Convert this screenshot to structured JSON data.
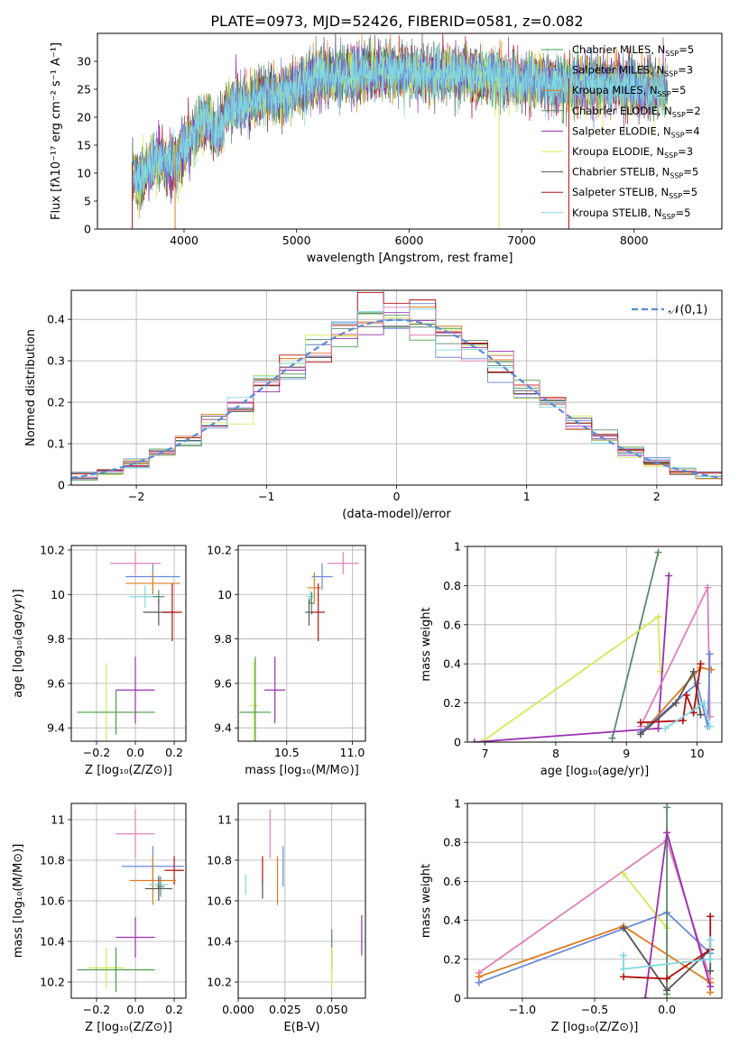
{
  "figure_title": "PLATE=0973, MJD=52426, FIBERID=0581, z=0.082",
  "colors": {
    "chabrier_miles": "#4a9a4a",
    "salpeter_miles": "#6a8ad8",
    "kroupa_miles": "#e07b20",
    "chabrier_elodie": "#5a8a6a",
    "salpeter_elodie": "#9a30b0",
    "kroupa_elodie": "#d6e85a",
    "chabrier_stelib": "#555555",
    "salpeter_stelib": "#b01010",
    "kroupa_stelib": "#80d8e0",
    "pink": "#e080b8",
    "normal_curve": "#5a8ad8"
  },
  "chart_data": [
    {
      "id": "spectrum",
      "type": "line",
      "xlabel": "wavelength [Angstrom, rest frame]",
      "ylabel": "Flux [fλ10⁻¹⁷ erg cm⁻² s⁻¹ A⁻¹]",
      "xlim": [
        3230,
        8780
      ],
      "ylim": [
        0,
        35
      ],
      "xticks": [
        4000,
        5000,
        6000,
        7000,
        8000
      ],
      "yticks": [
        0,
        5,
        10,
        15,
        20,
        25,
        30
      ],
      "grid": false,
      "legend_position": "top-right",
      "series": [
        {
          "name": "Chabrier MILES, N_SSP=5",
          "color_key": "chabrier_miles"
        },
        {
          "name": "Salpeter MILES, N_SSP=3",
          "color_key": "salpeter_miles"
        },
        {
          "name": "Kroupa MILES, N_SSP=5",
          "color_key": "kroupa_miles"
        },
        {
          "name": "Chabrier ELODIE, N_SSP=2",
          "color_key": "chabrier_elodie"
        },
        {
          "name": "Salpeter ELODIE, N_SSP=4",
          "color_key": "salpeter_elodie"
        },
        {
          "name": "Kroupa ELODIE, N_SSP=3",
          "color_key": "kroupa_elodie"
        },
        {
          "name": "Chabrier STELIB, N_SSP=5",
          "color_key": "chabrier_stelib"
        },
        {
          "name": "Salpeter STELIB, N_SSP=5",
          "color_key": "salpeter_stelib"
        },
        {
          "name": "Kroupa STELIB, N_SSP=5",
          "color_key": "kroupa_stelib"
        }
      ],
      "continuum": {
        "wavelength": [
          3540,
          3600,
          3700,
          3800,
          3900,
          4000,
          4100,
          4200,
          4300,
          4400,
          4600,
          4800,
          5000,
          5200,
          5400,
          5600,
          5800,
          6000,
          6200,
          6400,
          6600,
          6800,
          7000,
          7200,
          7400,
          7600,
          7800,
          8000,
          8200,
          8300
        ],
        "flux": [
          11,
          10,
          12,
          13,
          12,
          15,
          19,
          21,
          18,
          23,
          24,
          25,
          26,
          28,
          28.5,
          29,
          29.5,
          29,
          28.5,
          29,
          28.5,
          28,
          27.5,
          27.5,
          27,
          27,
          26.5,
          26.5,
          26,
          25.5
        ]
      }
    },
    {
      "id": "residuals",
      "type": "histogram",
      "xlabel": "(data-model)/error",
      "ylabel": "Normed distribution",
      "xlim": [
        -2.5,
        2.5
      ],
      "ylim": [
        0,
        0.47
      ],
      "xticks": [
        -2,
        -1,
        0,
        1,
        2
      ],
      "xtick_labels": [
        "−2",
        "−1",
        "0",
        "1",
        "2"
      ],
      "yticks": [
        0.0,
        0.1,
        0.2,
        0.3,
        0.4
      ],
      "grid": true,
      "legend_position": "top-right",
      "legend_label": "𝒩(0,1)",
      "bin_edges": [
        -2.5,
        -2.3,
        -2.1,
        -1.9,
        -1.7,
        -1.5,
        -1.3,
        -1.1,
        -0.9,
        -0.7,
        -0.5,
        -0.3,
        -0.1,
        0.1,
        0.3,
        0.5,
        0.7,
        0.9,
        1.1,
        1.3,
        1.5,
        1.7,
        1.9,
        2.1,
        2.3,
        2.5
      ]
    },
    {
      "id": "age_vs_Z",
      "type": "errorbar",
      "xlabel": "Z [log₁₀(Z/Z⊙)]",
      "ylabel": "age  [log₁₀(age/yr)]",
      "xlim": [
        -0.33,
        0.26
      ],
      "ylim": [
        9.34,
        10.22
      ],
      "xticks": [
        -0.2,
        0.0,
        0.2
      ],
      "xtick_labels": [
        "−0.2",
        "0.0",
        "0.2"
      ],
      "yticks": [
        9.4,
        9.6,
        9.8,
        10.0,
        10.2
      ],
      "grid": true,
      "points": [
        {
          "color_key": "pink",
          "x": 0.0,
          "xerr": 0.13,
          "y": 10.14,
          "yerr": 0.05
        },
        {
          "color_key": "salpeter_miles",
          "x": 0.09,
          "xerr": 0.14,
          "y": 10.08,
          "yerr": 0.06
        },
        {
          "color_key": "kroupa_miles",
          "x": 0.09,
          "xerr": 0.14,
          "y": 10.05,
          "yerr": 0.05
        },
        {
          "color_key": "kroupa_stelib",
          "x": 0.05,
          "xerr": 0.08,
          "y": 9.99,
          "yerr": 0.05
        },
        {
          "color_key": "chabrier_elodie",
          "x": 0.12,
          "xerr": 0.03,
          "y": 9.99,
          "yerr": 0.03
        },
        {
          "color_key": "chabrier_stelib",
          "x": 0.12,
          "xerr": 0.08,
          "y": 9.92,
          "yerr": 0.06
        },
        {
          "color_key": "salpeter_stelib",
          "x": 0.19,
          "xerr": 0.05,
          "y": 9.92,
          "yerr": 0.13
        },
        {
          "color_key": "salpeter_elodie",
          "x": 0.0,
          "xerr": 0.1,
          "y": 9.57,
          "yerr": 0.15
        },
        {
          "color_key": "kroupa_elodie",
          "x": -0.15,
          "xerr": 0.09,
          "y": 9.47,
          "yerr": 0.22
        },
        {
          "color_key": "chabrier_miles",
          "x": -0.1,
          "xerr": 0.2,
          "y": 9.47,
          "yerr": 0.1
        }
      ]
    },
    {
      "id": "age_vs_mass",
      "type": "errorbar",
      "xlabel": "mass [log₁₀(M/M⊙)]",
      "ylabel": "",
      "xlim": [
        10.13,
        11.1
      ],
      "ylim": [
        9.34,
        10.22
      ],
      "xticks": [
        10.5,
        11.0
      ],
      "xtick_labels": [
        "10.5",
        "11.0"
      ],
      "yticks": [
        9.4,
        9.6,
        9.8,
        10.0,
        10.2
      ],
      "grid": true,
      "points": [
        {
          "color_key": "pink",
          "x": 10.93,
          "xerr": 0.12,
          "y": 10.14,
          "yerr": 0.05
        },
        {
          "color_key": "salpeter_miles",
          "x": 10.77,
          "xerr": 0.08,
          "y": 10.08,
          "yerr": 0.06
        },
        {
          "color_key": "kroupa_miles",
          "x": 10.71,
          "xerr": 0.05,
          "y": 10.03,
          "yerr": 0.07
        },
        {
          "color_key": "kroupa_stelib",
          "x": 10.68,
          "xerr": 0.03,
          "y": 9.99,
          "yerr": 0.03
        },
        {
          "color_key": "chabrier_elodie",
          "x": 10.69,
          "xerr": 0.02,
          "y": 9.96,
          "yerr": 0.05
        },
        {
          "color_key": "chabrier_stelib",
          "x": 10.67,
          "xerr": 0.03,
          "y": 9.92,
          "yerr": 0.06
        },
        {
          "color_key": "salpeter_stelib",
          "x": 10.74,
          "xerr": 0.05,
          "y": 9.92,
          "yerr": 0.13
        },
        {
          "color_key": "salpeter_elodie",
          "x": 10.41,
          "xerr": 0.08,
          "y": 9.57,
          "yerr": 0.15
        },
        {
          "color_key": "kroupa_elodie",
          "x": 10.25,
          "xerr": 0.03,
          "y": 9.5,
          "yerr": 0.2
        },
        {
          "color_key": "chabrier_miles",
          "x": 10.26,
          "xerr": 0.12,
          "y": 9.47,
          "yerr": 0.25
        }
      ]
    },
    {
      "id": "weight_vs_age",
      "type": "line",
      "xlabel": "age  [log₁₀(age/yr)]",
      "ylabel": "mass weight",
      "xlim": [
        6.75,
        10.35
      ],
      "ylim": [
        0,
        1.0
      ],
      "xticks": [
        7,
        8,
        9,
        10
      ],
      "yticks": [
        0.0,
        0.2,
        0.4,
        0.6,
        0.8,
        1.0
      ],
      "grid": true,
      "series": [
        {
          "color_key": "chabrier_elodie",
          "x": [
            8.8,
            9.45
          ],
          "y": [
            0.02,
            0.97
          ]
        },
        {
          "color_key": "kroupa_elodie",
          "x": [
            6.95,
            9.45,
            9.48
          ],
          "y": [
            0.0,
            0.64,
            0.36
          ]
        },
        {
          "color_key": "salpeter_elodie",
          "x": [
            6.85,
            9.45,
            9.6
          ],
          "y": [
            0.0,
            0.07,
            0.85
          ]
        },
        {
          "color_key": "pink",
          "x": [
            9.2,
            10.15,
            10.18
          ],
          "y": [
            0.08,
            0.79,
            0.13
          ]
        },
        {
          "color_key": "kroupa_miles",
          "x": [
            9.3,
            10.05,
            10.2
          ],
          "y": [
            0.08,
            0.38,
            0.37
          ]
        },
        {
          "color_key": "salpeter_miles",
          "x": [
            9.2,
            10.0,
            10.15,
            10.18
          ],
          "y": [
            0.05,
            0.3,
            0.08,
            0.45
          ]
        },
        {
          "color_key": "chabrier_stelib",
          "x": [
            9.2,
            9.7,
            9.95,
            10.05
          ],
          "y": [
            0.04,
            0.2,
            0.36,
            0.14
          ]
        },
        {
          "color_key": "salpeter_stelib",
          "x": [
            9.2,
            9.8,
            9.85,
            9.95,
            10.05
          ],
          "y": [
            0.1,
            0.11,
            0.24,
            0.15,
            0.4
          ]
        },
        {
          "color_key": "kroupa_stelib",
          "x": [
            9.55,
            10.1,
            10.18
          ],
          "y": [
            0.07,
            0.2,
            0.08
          ]
        }
      ]
    },
    {
      "id": "mass_vs_Z",
      "type": "errorbar",
      "xlabel": "Z [log₁₀(Z/Z⊙)]",
      "ylabel": "mass [log₁₀(M/M⊙)]",
      "xlim": [
        -0.33,
        0.26
      ],
      "ylim": [
        10.12,
        11.08
      ],
      "xticks": [
        -0.2,
        0.0,
        0.2
      ],
      "xtick_labels": [
        "−0.2",
        "0.0",
        "0.2"
      ],
      "yticks": [
        10.2,
        10.4,
        10.6,
        10.8,
        11.0
      ],
      "grid": true,
      "points": [
        {
          "color_key": "pink",
          "x": 0.0,
          "xerr": 0.1,
          "y": 10.93,
          "yerr": 0.12
        },
        {
          "color_key": "salpeter_miles",
          "x": 0.09,
          "xerr": 0.16,
          "y": 10.77,
          "yerr": 0.1
        },
        {
          "color_key": "salpeter_stelib",
          "x": 0.2,
          "xerr": 0.05,
          "y": 10.75,
          "yerr": 0.07
        },
        {
          "color_key": "kroupa_miles",
          "x": 0.09,
          "xerr": 0.12,
          "y": 10.7,
          "yerr": 0.12
        },
        {
          "color_key": "kroupa_stelib",
          "x": 0.12,
          "xerr": 0.05,
          "y": 10.68,
          "yerr": 0.05
        },
        {
          "color_key": "chabrier_elodie",
          "x": 0.13,
          "xerr": 0.02,
          "y": 10.67,
          "yerr": 0.05
        },
        {
          "color_key": "chabrier_stelib",
          "x": 0.12,
          "xerr": 0.07,
          "y": 10.66,
          "yerr": 0.06
        },
        {
          "color_key": "salpeter_elodie",
          "x": 0.0,
          "xerr": 0.1,
          "y": 10.42,
          "yerr": 0.1
        },
        {
          "color_key": "kroupa_elodie",
          "x": -0.15,
          "xerr": 0.09,
          "y": 10.27,
          "yerr": 0.1
        },
        {
          "color_key": "chabrier_miles",
          "x": -0.1,
          "xerr": 0.2,
          "y": 10.26,
          "yerr": 0.11
        }
      ]
    },
    {
      "id": "mass_vs_ebv",
      "type": "errorbar",
      "xlabel": "E(B-V)",
      "ylabel": "",
      "xlim": [
        0.0,
        0.068
      ],
      "ylim": [
        10.12,
        11.08
      ],
      "xticks": [
        0.0,
        0.025,
        0.05
      ],
      "xtick_labels": [
        "0.000",
        "0.025",
        "0.050"
      ],
      "yticks": [
        10.2,
        10.4,
        10.6,
        10.8,
        11.0
      ],
      "grid": true,
      "points": [
        {
          "color_key": "pink",
          "x": 0.017,
          "y": 10.93,
          "yerr": 0.12
        },
        {
          "color_key": "salpeter_miles",
          "x": 0.024,
          "y": 10.77,
          "yerr": 0.1
        },
        {
          "color_key": "salpeter_stelib",
          "x": 0.013,
          "y": 10.75,
          "yerr": 0.07
        },
        {
          "color_key": "kroupa_miles",
          "x": 0.021,
          "y": 10.7,
          "yerr": 0.12
        },
        {
          "color_key": "kroupa_stelib",
          "x": 0.004,
          "y": 10.68,
          "yerr": 0.05
        },
        {
          "color_key": "chabrier_stelib",
          "x": 0.013,
          "y": 10.66,
          "yerr": 0.05
        },
        {
          "color_key": "salpeter_elodie",
          "x": 0.066,
          "y": 10.43,
          "yerr": 0.1
        },
        {
          "color_key": "chabrier_elodie",
          "x": 0.05,
          "y": 10.36,
          "yerr": 0.1
        },
        {
          "color_key": "kroupa_elodie",
          "x": 0.05,
          "y": 10.27,
          "yerr": 0.1
        }
      ]
    },
    {
      "id": "weight_vs_Z",
      "type": "line",
      "xlabel": "Z [log₁₀(Z/Z⊙)]",
      "ylabel": "mass weight",
      "xlim": [
        -1.38,
        0.38
      ],
      "ylim": [
        0,
        1.0
      ],
      "xticks": [
        -1.0,
        -0.5,
        0.0
      ],
      "xtick_labels": [
        "−1.0",
        "−0.5",
        "0.0"
      ],
      "yticks": [
        0.0,
        0.2,
        0.4,
        0.6,
        0.8,
        1.0
      ],
      "grid": true,
      "series": [
        {
          "color_key": "pink",
          "x": [
            -1.3,
            0.0,
            0.3
          ],
          "y": [
            0.13,
            0.81,
            0.1
          ]
        },
        {
          "color_key": "kroupa_miles",
          "x": [
            -1.3,
            -0.3,
            0.3,
            0.3
          ],
          "y": [
            0.11,
            0.37,
            0.08,
            0.03
          ]
        },
        {
          "color_key": "salpeter_miles",
          "x": [
            -1.3,
            0.0,
            0.3,
            0.3
          ],
          "y": [
            0.08,
            0.44,
            0.23,
            0.3
          ]
        },
        {
          "color_key": "kroupa_elodie",
          "x": [
            -0.3,
            0.0,
            0.0
          ],
          "y": [
            0.64,
            0.36,
            0.0
          ]
        },
        {
          "color_key": "chabrier_elodie",
          "x": [
            0.0,
            0.0
          ],
          "y": [
            0.02,
            0.98
          ]
        },
        {
          "color_key": "salpeter_elodie",
          "x": [
            -0.15,
            0.0,
            0.3
          ],
          "y": [
            0.0,
            0.85,
            0.06
          ]
        },
        {
          "color_key": "chabrier_stelib",
          "x": [
            -0.3,
            0.0,
            0.3,
            0.3
          ],
          "y": [
            0.36,
            0.04,
            0.25,
            0.14
          ]
        },
        {
          "color_key": "salpeter_stelib",
          "x": [
            -0.3,
            0.0,
            0.3,
            0.3
          ],
          "y": [
            0.11,
            0.1,
            0.25,
            0.42
          ]
        },
        {
          "color_key": "kroupa_stelib",
          "x": [
            -0.3,
            -0.3,
            0.3,
            0.3
          ],
          "y": [
            0.22,
            0.15,
            0.2,
            0.3
          ]
        }
      ]
    }
  ]
}
